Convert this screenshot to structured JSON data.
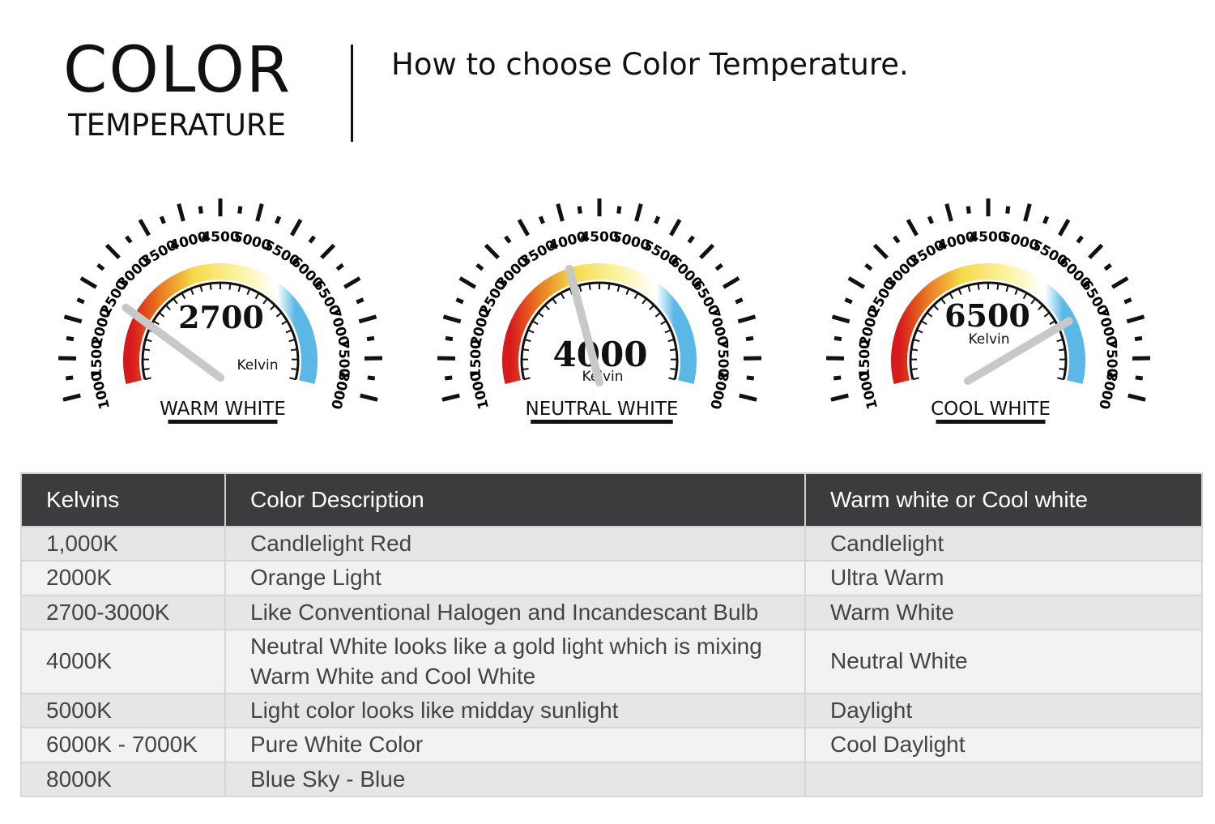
{
  "header": {
    "title": "COLOR",
    "title_sub": "TEMPERATURE",
    "subtitle": "How to choose Color Temperature."
  },
  "gauges": {
    "scale": [
      "1000",
      "1500",
      "2000",
      "2500",
      "3000",
      "3500",
      "4000",
      "4500",
      "5000",
      "5500",
      "6000",
      "6500",
      "7000",
      "7500",
      "8000"
    ],
    "unit": "Kelvin",
    "arc_colors": [
      "#d7191c",
      "#e8741e",
      "#f5d94a",
      "#fbf3a0",
      "#ffffff",
      "#5bb8e6"
    ],
    "items": [
      {
        "value": 2700,
        "value_label": "2700",
        "name": "WARM WHITE"
      },
      {
        "value": 4000,
        "value_label": "4000",
        "name": "NEUTRAL WHITE"
      },
      {
        "value": 6500,
        "value_label": "6500",
        "name": "COOL WHITE"
      }
    ]
  },
  "table": {
    "headers": [
      "Kelvins",
      "Color Description",
      "Warm white or Cool white"
    ],
    "rows": [
      [
        "1,000K",
        "Candlelight Red",
        "Candlelight"
      ],
      [
        "2000K",
        "Orange Light",
        "Ultra Warm"
      ],
      [
        "2700-3000K",
        "Like Conventional Halogen and Incandescant Bulb",
        "Warm White"
      ],
      [
        "4000K",
        "Neutral White looks like a gold light which is mixing Warm White and Cool White",
        "Neutral White"
      ],
      [
        "5000K",
        "Light color looks like midday sunlight",
        "Daylight"
      ],
      [
        "6000K - 7000K",
        "Pure White Color",
        "Cool Daylight"
      ],
      [
        "8000K",
        "Blue Sky - Blue",
        ""
      ]
    ]
  }
}
